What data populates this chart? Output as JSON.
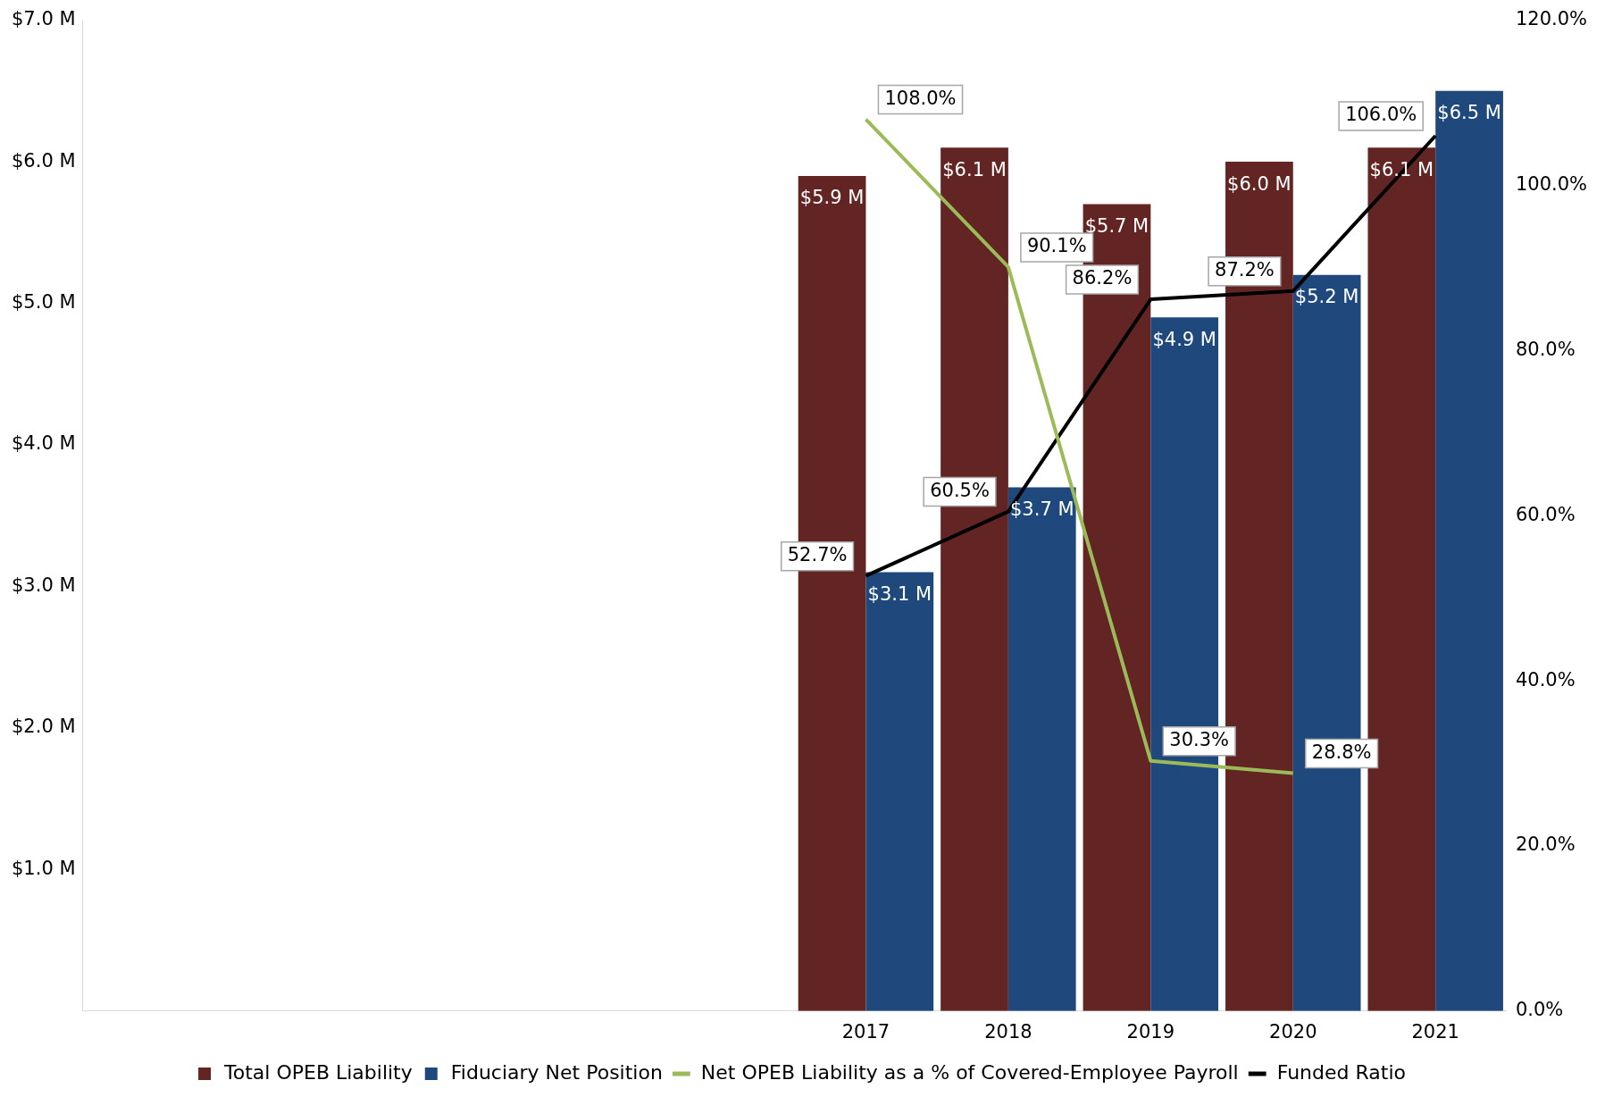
{
  "chart_data": {
    "type": "bar",
    "categories": [
      null,
      null,
      null,
      null,
      null,
      "2017",
      "2018",
      "2019",
      "2020",
      "2021"
    ],
    "series": [
      {
        "name": "Total OPEB Liability",
        "color": "#632523",
        "values": [
          null,
          null,
          null,
          null,
          null,
          5.9,
          6.1,
          5.7,
          6.0,
          6.1
        ],
        "value_labels": [
          null,
          null,
          null,
          null,
          null,
          "$5.9 M",
          "$6.1 M",
          "$5.7 M",
          "$6.0 M",
          "$6.1 M"
        ]
      },
      {
        "name": "Fiduciary Net Position",
        "color": "#1f497d",
        "values": [
          null,
          null,
          null,
          null,
          null,
          3.1,
          3.7,
          4.9,
          5.2,
          6.5
        ],
        "value_labels": [
          null,
          null,
          null,
          null,
          null,
          "$3.1 M",
          "$3.7 M",
          "$4.9 M",
          "$5.2 M",
          "$6.5 M"
        ]
      },
      {
        "name": "Net OPEB Liability as a % of Covered-Employee Payroll",
        "type": "line",
        "axis": "y2",
        "color": "#9bbb59",
        "values": [
          null,
          null,
          null,
          null,
          null,
          108.0,
          90.1,
          30.3,
          28.8,
          null
        ],
        "value_labels": [
          null,
          null,
          null,
          null,
          null,
          "108.0%",
          "90.1%",
          "30.3%",
          "28.8%",
          null
        ]
      },
      {
        "name": "Funded Ratio",
        "type": "line",
        "axis": "y2",
        "color": "#000000",
        "values": [
          null,
          null,
          null,
          null,
          null,
          52.7,
          60.5,
          86.2,
          87.2,
          106.0
        ],
        "value_labels": [
          null,
          null,
          null,
          null,
          null,
          "52.7%",
          "60.5%",
          "86.2%",
          "87.2%",
          "106.0%"
        ]
      }
    ],
    "ylim": [
      0,
      7
    ],
    "yticks": [
      {
        "value": 0,
        "label": null
      },
      {
        "value": 1,
        "label": "$1.0 M"
      },
      {
        "value": 2,
        "label": "$2.0 M"
      },
      {
        "value": 3,
        "label": "$3.0 M"
      },
      {
        "value": 4,
        "label": "$4.0 M"
      },
      {
        "value": 5,
        "label": "$5.0 M"
      },
      {
        "value": 6,
        "label": "$6.0 M"
      },
      {
        "value": 7,
        "label": "$7.0 M"
      }
    ],
    "y2lim": [
      0,
      120
    ],
    "y2ticks": [
      {
        "value": 0,
        "label": "0.0%"
      },
      {
        "value": 20,
        "label": "20.0%"
      },
      {
        "value": 40,
        "label": "40.0%"
      },
      {
        "value": 60,
        "label": "60.0%"
      },
      {
        "value": 80,
        "label": "80.0%"
      },
      {
        "value": 100,
        "label": "100.0%"
      },
      {
        "value": 120,
        "label": "120.0%"
      }
    ],
    "grid": false,
    "legend": "bottom",
    "marker": "none",
    "line_style": "solid"
  }
}
